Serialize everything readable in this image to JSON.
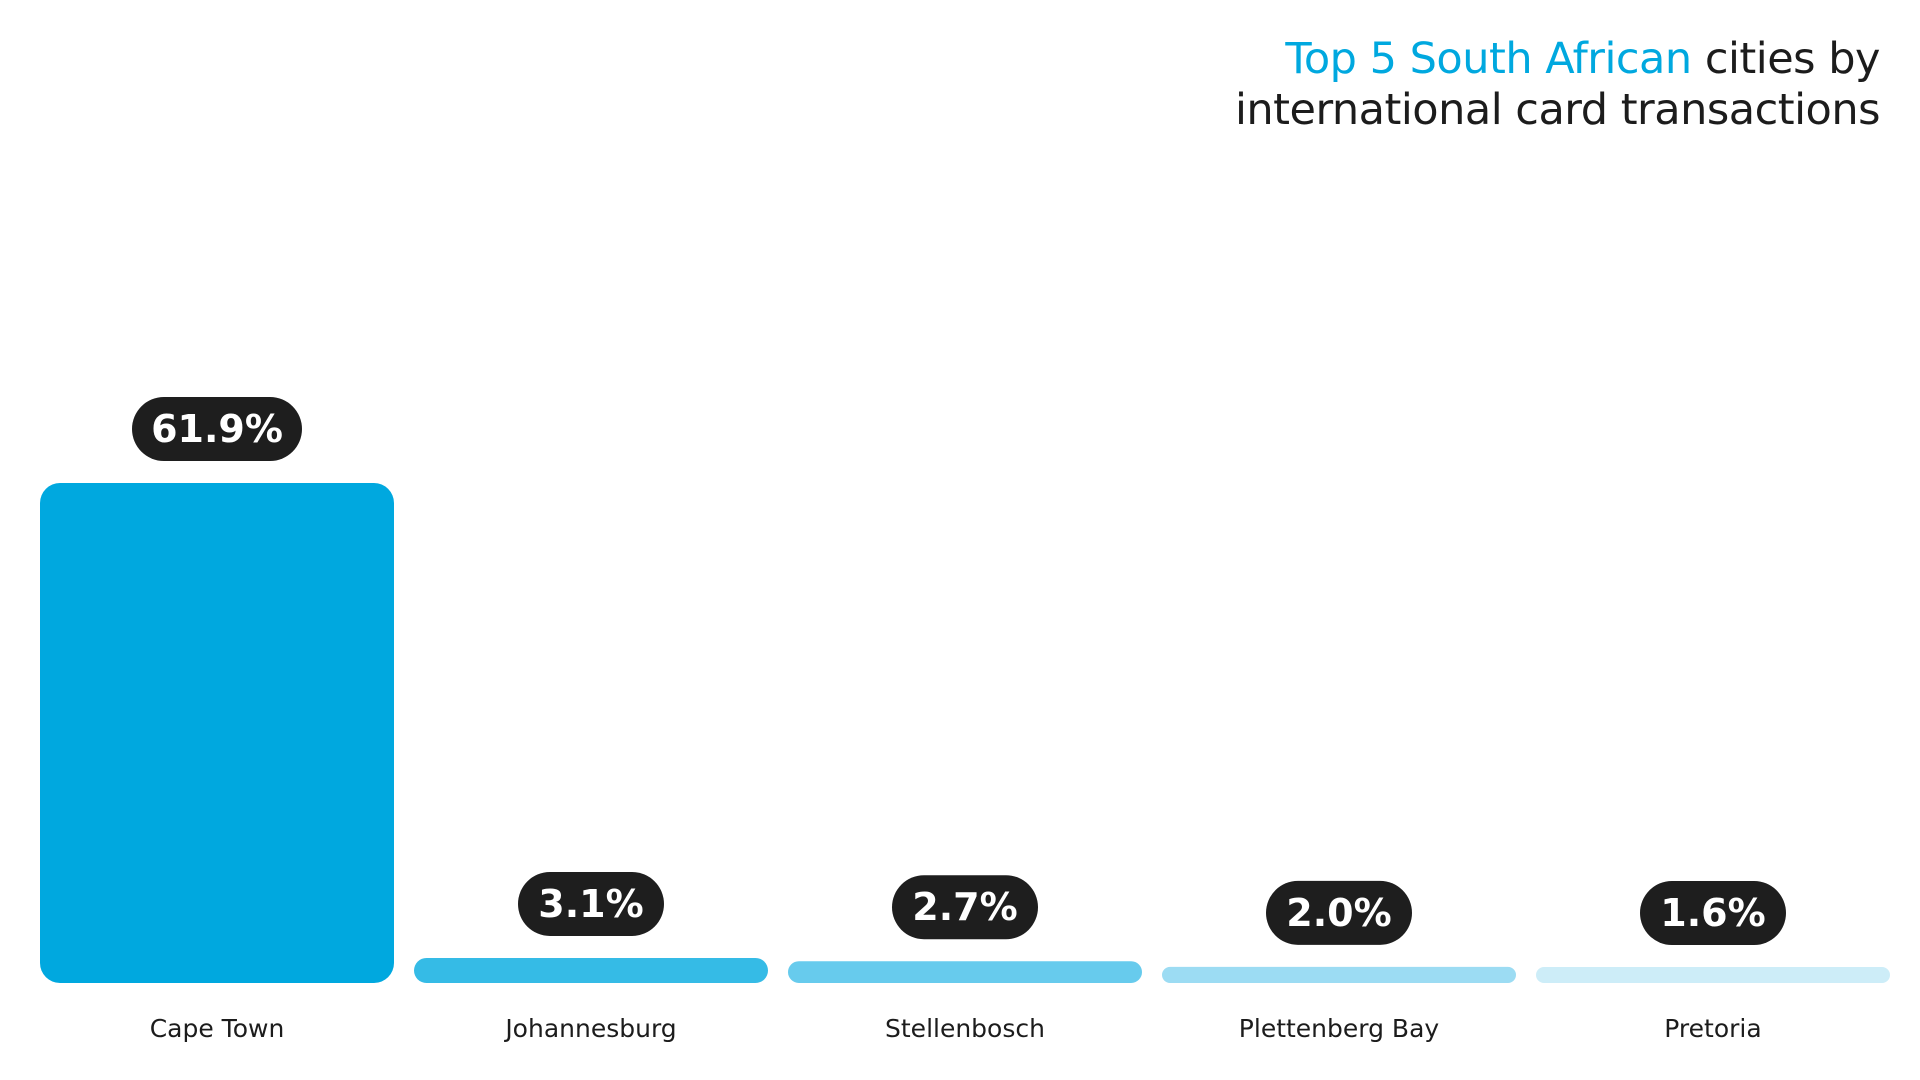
{
  "chart_data": {
    "type": "bar",
    "title_accent": "Top 5 South African",
    "title_rest_line1": "cities by",
    "title_line2": "international card transactions",
    "categories": [
      "Cape Town",
      "Johannesburg",
      "Stellenbosch",
      "Plettenberg Bay",
      "Pretoria"
    ],
    "values": [
      61.9,
      3.1,
      2.7,
      2.0,
      1.6
    ],
    "value_labels": [
      "61.9%",
      "3.1%",
      "2.7%",
      "2.0%",
      "1.6%"
    ],
    "bar_colors": [
      "#00a8df",
      "#35bbe6",
      "#67cbed",
      "#9cdcf3",
      "#cdedf8"
    ],
    "label_pill_color": "#1e1e1e",
    "grid": false,
    "legend": "none"
  }
}
